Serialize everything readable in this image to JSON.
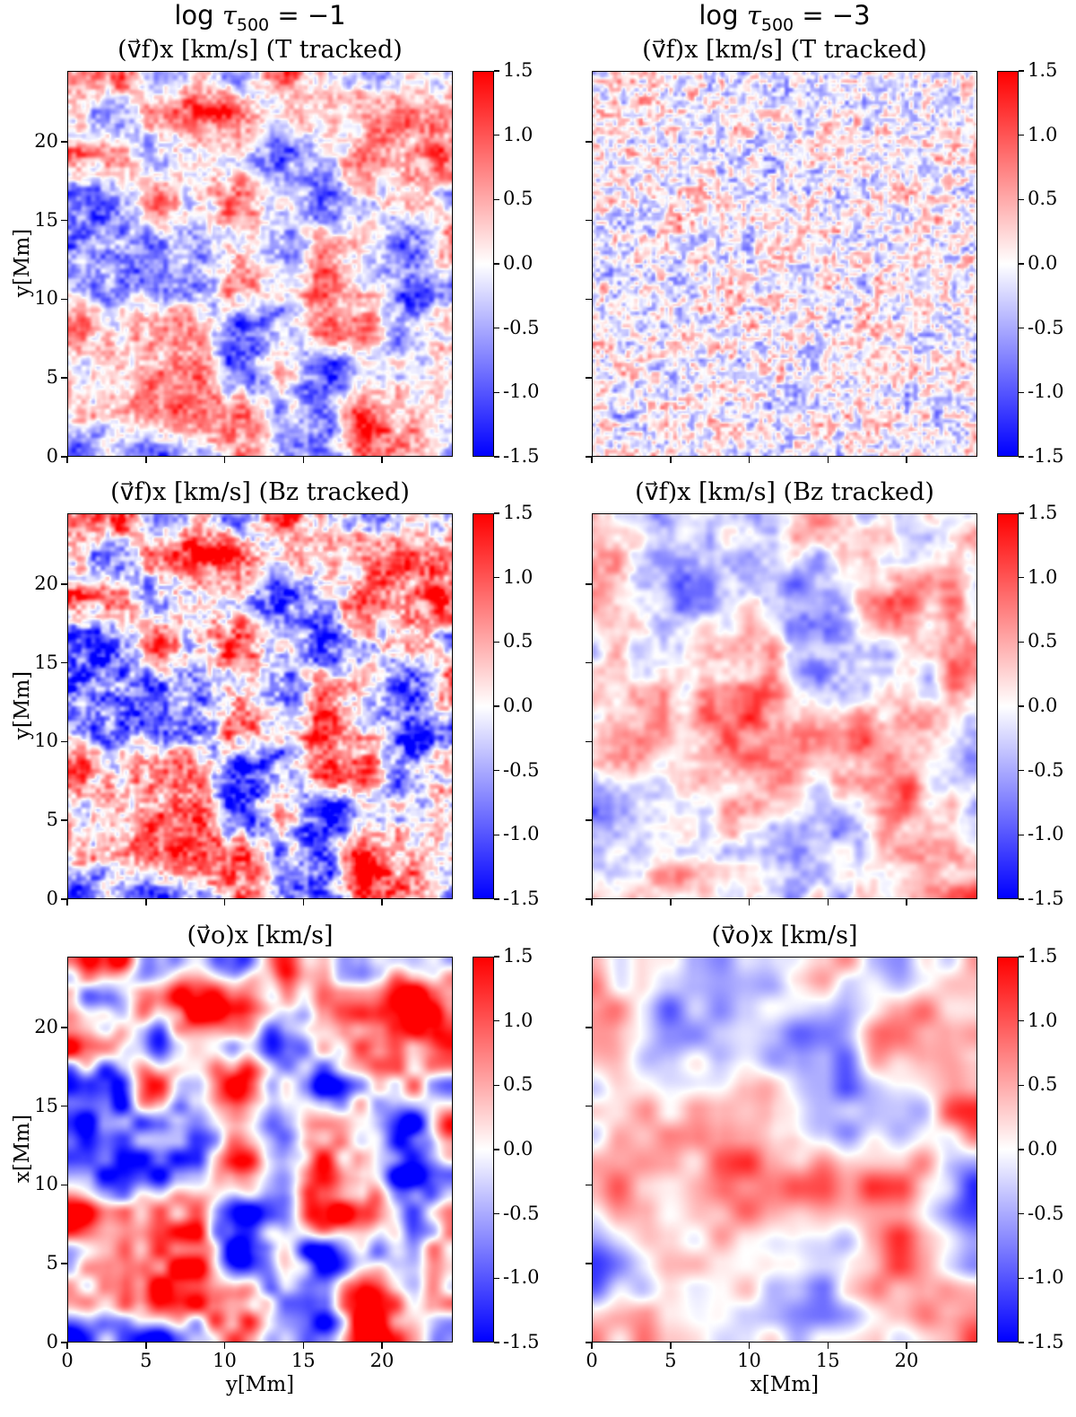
{
  "figure": {
    "column_titles": [
      {
        "prefix": "log ",
        "var": "τ",
        "sub": "500",
        "suffix": " = −1"
      },
      {
        "prefix": "log ",
        "var": "τ",
        "sub": "500",
        "suffix": " = −3"
      }
    ]
  },
  "chart_data": [
    {
      "type": "heatmap",
      "title": "(v⃗f)x [km/s] (T tracked)",
      "column": "log τ500 = −1",
      "xlabel": "",
      "ylabel": "y[Mm]",
      "xlim": [
        0,
        24.5
      ],
      "ylim": [
        0,
        24.5
      ],
      "xticks": [
        0,
        5,
        10,
        15,
        20
      ],
      "yticks": [
        0,
        5,
        10,
        15,
        20
      ],
      "colorbar": {
        "ticks": [
          "1.5",
          "1.0",
          "0.5",
          "0.0",
          "-0.5",
          "-1.0",
          "-1.5"
        ],
        "range": [
          -1.5,
          1.5
        ],
        "cmap": "bwr"
      },
      "pattern": {
        "scale": "medium",
        "amplitude": 0.85,
        "seed": 11
      }
    },
    {
      "type": "heatmap",
      "title": "(v⃗f)x [km/s] (T tracked)",
      "column": "log τ500 = −3",
      "xlabel": "",
      "ylabel": "",
      "xlim": [
        0,
        24.5
      ],
      "ylim": [
        0,
        24.5
      ],
      "xticks": [
        0,
        5,
        10,
        15,
        20
      ],
      "yticks": [
        0,
        5,
        10,
        15,
        20
      ],
      "colorbar": {
        "ticks": [
          "1.5",
          "1.0",
          "0.5",
          "0.0",
          "-0.5",
          "-1.0",
          "-1.5"
        ],
        "range": [
          -1.5,
          1.5
        ],
        "cmap": "bwr"
      },
      "pattern": {
        "scale": "fine",
        "amplitude": 0.6,
        "seed": 23
      }
    },
    {
      "type": "heatmap",
      "title": "(v⃗f)x [km/s] (Bz tracked)",
      "column": "log τ500 = −1",
      "xlabel": "",
      "ylabel": "y[Mm]",
      "xlim": [
        0,
        24.5
      ],
      "ylim": [
        0,
        24.5
      ],
      "xticks": [
        0,
        5,
        10,
        15,
        20
      ],
      "yticks": [
        0,
        5,
        10,
        15,
        20
      ],
      "colorbar": {
        "ticks": [
          "1.5",
          "1.0",
          "0.5",
          "0.0",
          "-0.5",
          "-1.0",
          "-1.5"
        ],
        "range": [
          -1.5,
          1.5
        ],
        "cmap": "bwr"
      },
      "pattern": {
        "scale": "medium",
        "amplitude": 1.1,
        "seed": 11
      }
    },
    {
      "type": "heatmap",
      "title": "(v⃗f)x [km/s] (Bz tracked)",
      "column": "log τ500 = −3",
      "xlabel": "",
      "ylabel": "",
      "xlim": [
        0,
        24.5
      ],
      "ylim": [
        0,
        24.5
      ],
      "xticks": [
        0,
        5,
        10,
        15,
        20
      ],
      "yticks": [
        0,
        5,
        10,
        15,
        20
      ],
      "colorbar": {
        "ticks": [
          "1.5",
          "1.0",
          "0.5",
          "0.0",
          "-0.5",
          "-1.0",
          "-1.5"
        ],
        "range": [
          -1.5,
          1.5
        ],
        "cmap": "bwr"
      },
      "pattern": {
        "scale": "coarse",
        "amplitude": 0.65,
        "seed": 37
      }
    },
    {
      "type": "heatmap",
      "title": "(v⃗o)x [km/s]",
      "column": "log τ500 = −1",
      "xlabel": "y[Mm]",
      "ylabel": "x[Mm]",
      "xlim": [
        0,
        24.5
      ],
      "ylim": [
        0,
        24.5
      ],
      "xticks": [
        0,
        5,
        10,
        15,
        20
      ],
      "yticks": [
        0,
        5,
        10,
        15,
        20
      ],
      "colorbar": {
        "ticks": [
          "1.5",
          "1.0",
          "0.5",
          "0.0",
          "-0.5",
          "-1.0",
          "-1.5"
        ],
        "range": [
          -1.5,
          1.5
        ],
        "cmap": "bwr"
      },
      "pattern": {
        "scale": "smooth-medium",
        "amplitude": 1.3,
        "seed": 11
      }
    },
    {
      "type": "heatmap",
      "title": "(v⃗o)x [km/s]",
      "column": "log τ500 = −3",
      "xlabel": "x[Mm]",
      "ylabel": "",
      "xlim": [
        0,
        24.5
      ],
      "ylim": [
        0,
        24.5
      ],
      "xticks": [
        0,
        5,
        10,
        15,
        20
      ],
      "yticks": [
        0,
        5,
        10,
        15,
        20
      ],
      "colorbar": {
        "ticks": [
          "1.5",
          "1.0",
          "0.5",
          "0.0",
          "-0.5",
          "-1.0",
          "-1.5"
        ],
        "range": [
          -1.5,
          1.5
        ],
        "cmap": "bwr"
      },
      "pattern": {
        "scale": "smooth-coarse",
        "amplitude": 0.75,
        "seed": 37
      }
    }
  ]
}
